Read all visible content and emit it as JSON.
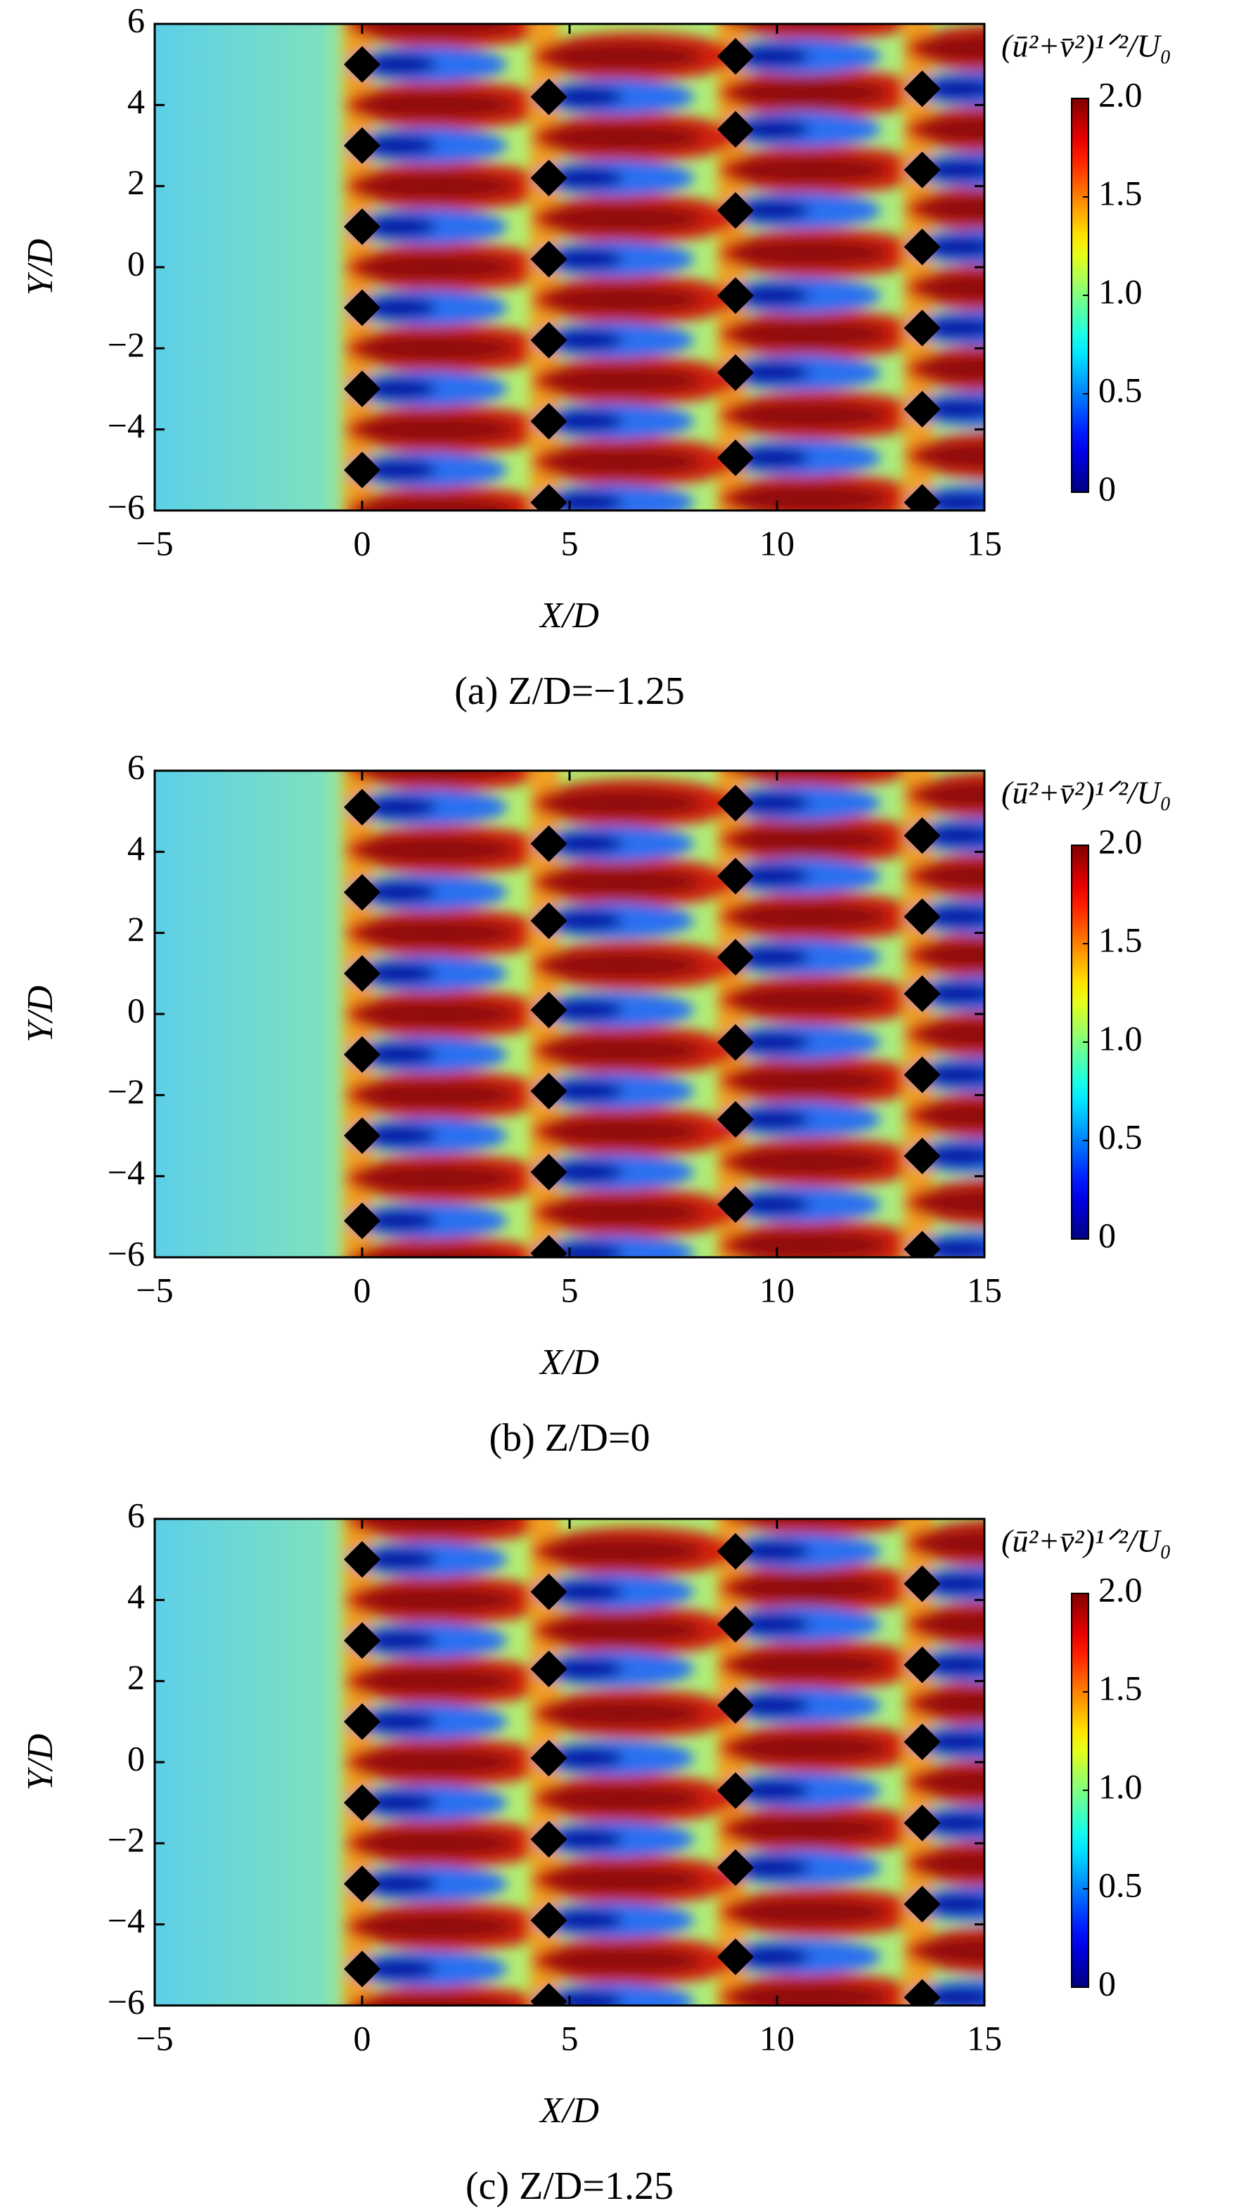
{
  "chart_data": [
    {
      "type": "heatmap",
      "caption": "(a) Z/D=−1.25",
      "xlabel": "X/D",
      "ylabel": "Y/D",
      "colorbar_label": "(ū²+v̄²)¹ᐟ²/U₀",
      "colormap": "jet",
      "clim": [
        0,
        2
      ],
      "cticks": [
        0,
        0.5,
        {
          "value": 1,
          "label": "1.0"
        },
        1.5,
        {
          "value": 2,
          "label": "2.0"
        }
      ],
      "xlim": [
        -5,
        15
      ],
      "ylim": [
        -6,
        6
      ],
      "xticks": [
        {
          "value": -5,
          "label": "−5"
        },
        0,
        5,
        10,
        15
      ],
      "yticks": [
        {
          "value": -6,
          "label": "−6"
        },
        {
          "value": -4,
          "label": "−4"
        },
        {
          "value": -2,
          "label": "−2"
        },
        0,
        2,
        4,
        6
      ],
      "markers": {
        "x": [
          0,
          0,
          0,
          0,
          0,
          0,
          4.5,
          4.5,
          4.5,
          4.5,
          4.5,
          4.5,
          9,
          9,
          9,
          9,
          9,
          9,
          13.5,
          13.5,
          13.5,
          13.5,
          13.5,
          13.5
        ],
        "y": [
          5,
          3,
          1,
          -1,
          -3,
          -5,
          4.2,
          2.2,
          0.2,
          -1.8,
          -3.8,
          -5.8,
          5.2,
          3.4,
          1.4,
          -0.7,
          -2.6,
          -4.7,
          4.4,
          2.4,
          0.5,
          -1.5,
          -3.5,
          -5.8
        ]
      }
    },
    {
      "type": "heatmap",
      "caption": "(b) Z/D=0",
      "xlabel": "X/D",
      "ylabel": "Y/D",
      "colorbar_label": "(ū²+v̄²)¹ᐟ²/U₀",
      "colormap": "jet",
      "clim": [
        0,
        2
      ],
      "cticks": [
        0,
        0.5,
        {
          "value": 1,
          "label": "1.0"
        },
        1.5,
        {
          "value": 2,
          "label": "2.0"
        }
      ],
      "xlim": [
        -5,
        15
      ],
      "ylim": [
        -6,
        6
      ],
      "xticks": [
        {
          "value": -5,
          "label": "−5"
        },
        0,
        5,
        10,
        15
      ],
      "yticks": [
        {
          "value": -6,
          "label": "−6"
        },
        {
          "value": -4,
          "label": "−4"
        },
        {
          "value": -2,
          "label": "−2"
        },
        0,
        2,
        4,
        6
      ],
      "markers": {
        "x": [
          0,
          0,
          0,
          0,
          0,
          0,
          4.5,
          4.5,
          4.5,
          4.5,
          4.5,
          4.5,
          9,
          9,
          9,
          9,
          9,
          9,
          13.5,
          13.5,
          13.5,
          13.5,
          13.5,
          13.5
        ],
        "y": [
          5.1,
          3,
          1,
          -1,
          -3,
          -5.1,
          4.2,
          2.3,
          0.1,
          -1.9,
          -3.9,
          -5.9,
          5.2,
          3.4,
          1.4,
          -0.7,
          -2.6,
          -4.7,
          4.4,
          2.4,
          0.5,
          -1.5,
          -3.5,
          -5.8
        ]
      }
    },
    {
      "type": "heatmap",
      "caption": "(c) Z/D=1.25",
      "xlabel": "X/D",
      "ylabel": "Y/D",
      "colorbar_label": "(ū²+v̄²)¹ᐟ²/U₀",
      "colormap": "jet",
      "clim": [
        0,
        2
      ],
      "cticks": [
        0,
        0.5,
        {
          "value": 1,
          "label": "1.0"
        },
        1.5,
        {
          "value": 2,
          "label": "2.0"
        }
      ],
      "xlim": [
        -5,
        15
      ],
      "ylim": [
        -6,
        6
      ],
      "xticks": [
        {
          "value": -5,
          "label": "−5"
        },
        0,
        5,
        10,
        15
      ],
      "yticks": [
        {
          "value": -6,
          "label": "−6"
        },
        {
          "value": -4,
          "label": "−4"
        },
        {
          "value": -2,
          "label": "−2"
        },
        0,
        2,
        4,
        6
      ],
      "markers": {
        "x": [
          0,
          0,
          0,
          0,
          0,
          0,
          4.5,
          4.5,
          4.5,
          4.5,
          4.5,
          4.5,
          9,
          9,
          9,
          9,
          9,
          9,
          13.5,
          13.5,
          13.5,
          13.5,
          13.5,
          13.5
        ],
        "y": [
          5,
          3,
          1,
          -1,
          -3,
          -5.1,
          4.2,
          2.3,
          0.1,
          -1.9,
          -3.9,
          -5.9,
          5.2,
          3.4,
          1.4,
          -0.7,
          -2.6,
          -4.8,
          4.4,
          2.4,
          0.5,
          -1.5,
          -3.5,
          -5.8
        ]
      }
    }
  ]
}
